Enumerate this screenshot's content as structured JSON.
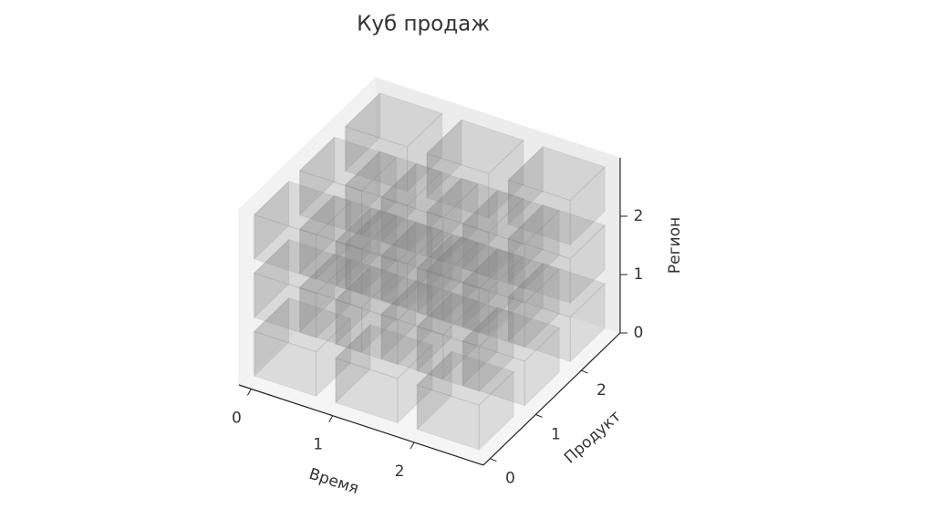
{
  "chart_data": {
    "type": "voxel",
    "title": "Куб продаж",
    "xlabel": "Время",
    "ylabel": "Продукт",
    "zlabel": "Регион",
    "xlim": [
      0,
      3
    ],
    "ylim": [
      0,
      3
    ],
    "zlim": [
      0,
      3
    ],
    "xticks": [
      0,
      1,
      2
    ],
    "yticks": [
      0,
      1,
      2
    ],
    "zticks": [
      0,
      1,
      2
    ],
    "color": "#808080",
    "voxels": [
      [
        [
          1,
          1,
          1
        ],
        [
          1,
          1,
          1
        ],
        [
          1,
          1,
          1
        ]
      ],
      [
        [
          1,
          1,
          1
        ],
        [
          1,
          1,
          1
        ],
        [
          1,
          1,
          1
        ]
      ],
      [
        [
          1,
          1,
          1
        ],
        [
          1,
          1,
          1
        ],
        [
          1,
          1,
          1
        ]
      ]
    ]
  }
}
